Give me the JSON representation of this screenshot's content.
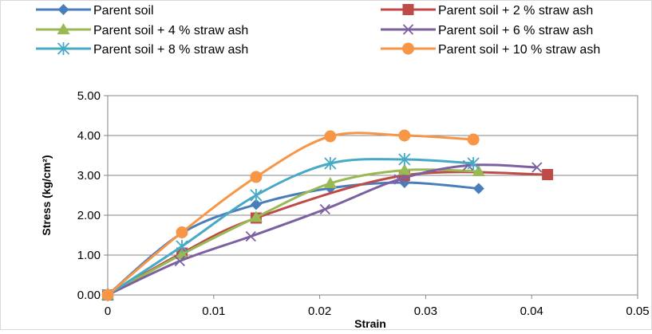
{
  "chart_data": {
    "type": "line",
    "title": "",
    "xlabel": "Strain",
    "ylabel": "Stress (kg/cm²)",
    "xlim": [
      0,
      0.05
    ],
    "ylim": [
      0,
      5
    ],
    "x_ticks": [
      0,
      0.01,
      0.02,
      0.03,
      0.04,
      0.05
    ],
    "x_tick_labels": [
      "0",
      "0.01",
      "0.02",
      "0.03",
      "0.04",
      "0.05"
    ],
    "y_ticks": [
      0,
      1,
      2,
      3,
      4,
      5
    ],
    "y_tick_labels": [
      "0.00",
      "1.00",
      "2.00",
      "3.00",
      "4.00",
      "5.00"
    ],
    "grid": "horizontal",
    "legend_position": "top",
    "series": [
      {
        "name": "Parent soil",
        "color": "#4a7ebb",
        "marker": "diamond",
        "x": [
          0,
          0.007,
          0.014,
          0.021,
          0.028,
          0.035
        ],
        "y": [
          0,
          1.55,
          2.27,
          2.68,
          2.82,
          2.67
        ]
      },
      {
        "name": "Parent soil + 2 % straw ash",
        "color": "#be4b48",
        "marker": "square",
        "x": [
          0,
          0.007,
          0.014,
          0.028,
          0.0415
        ],
        "y": [
          0,
          1.05,
          1.93,
          3.0,
          3.02
        ]
      },
      {
        "name": "Parent soil + 4 % straw ash",
        "color": "#98b954",
        "marker": "triangle",
        "x": [
          0,
          0.007,
          0.014,
          0.021,
          0.028,
          0.035
        ],
        "y": [
          0,
          1.02,
          1.95,
          2.8,
          3.13,
          3.1
        ]
      },
      {
        "name": "Parent soil + 6 % straw ash",
        "color": "#7d60a0",
        "marker": "x",
        "x": [
          0,
          0.0068,
          0.0135,
          0.0205,
          0.0275,
          0.034,
          0.0405
        ],
        "y": [
          0,
          0.85,
          1.47,
          2.15,
          2.9,
          3.25,
          3.2
        ]
      },
      {
        "name": "Parent soil + 8 % straw ash",
        "color": "#46aac5",
        "marker": "star",
        "x": [
          0,
          0.007,
          0.014,
          0.021,
          0.028,
          0.0345
        ],
        "y": [
          0,
          1.22,
          2.5,
          3.3,
          3.4,
          3.3
        ]
      },
      {
        "name": "Parent soil + 10 % straw ash",
        "color": "#f79646",
        "marker": "circle",
        "x": [
          0,
          0.007,
          0.014,
          0.021,
          0.028,
          0.0345
        ],
        "y": [
          0,
          1.57,
          2.96,
          3.98,
          4.0,
          3.9
        ]
      }
    ]
  }
}
